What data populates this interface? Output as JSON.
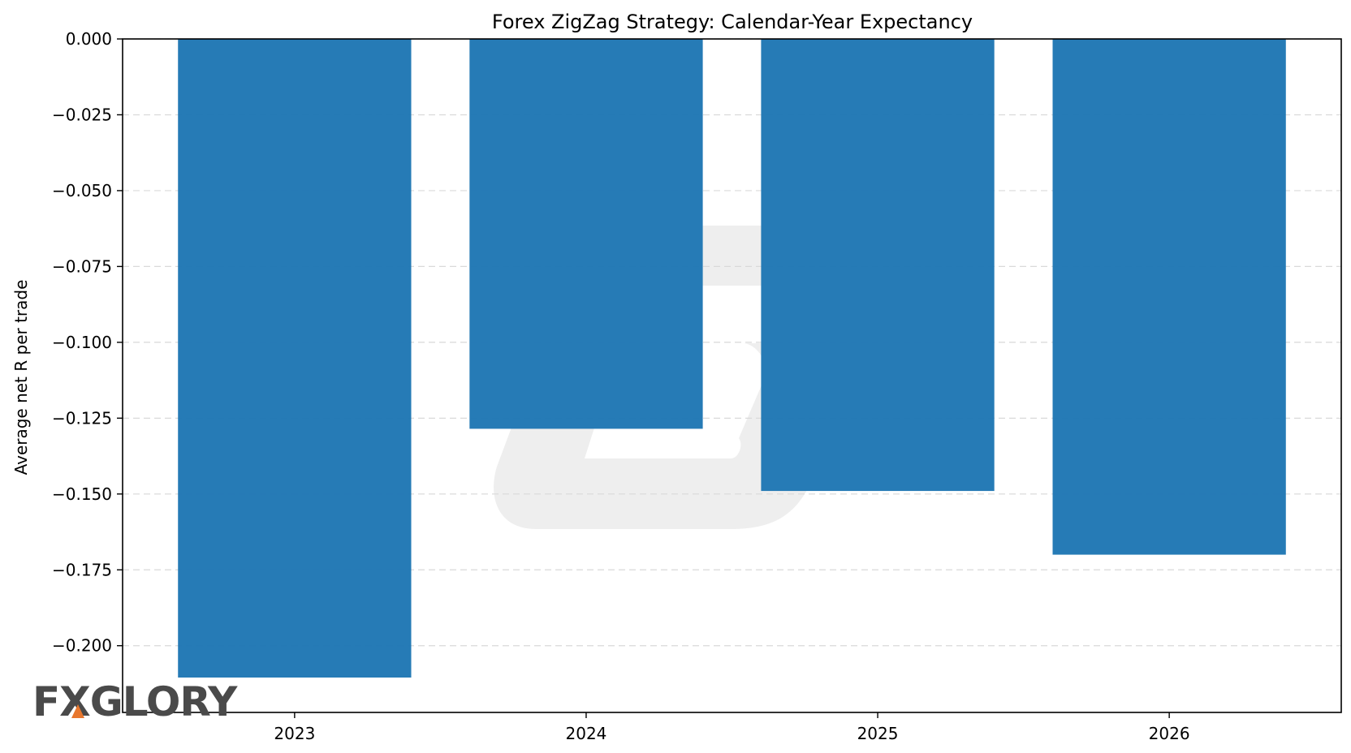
{
  "chart_data": {
    "type": "bar",
    "title": "Forex ZigZag Strategy: Calendar-Year Expectancy",
    "xlabel": "",
    "ylabel": "Average net R per trade",
    "categories": [
      "2023",
      "2024",
      "2025",
      "2026"
    ],
    "values": [
      -0.2105,
      -0.1285,
      -0.149,
      -0.17
    ],
    "ylim": [
      -0.222,
      0.0
    ],
    "yticks": [
      0.0,
      -0.025,
      -0.05,
      -0.075,
      -0.1,
      -0.125,
      -0.15,
      -0.175,
      -0.2
    ],
    "ytick_labels": [
      "0.000",
      "−0.025",
      "−0.050",
      "−0.075",
      "−0.100",
      "−0.125",
      "−0.150",
      "−0.175",
      "−0.200"
    ],
    "grid": true,
    "bar_color": "#1f77b4"
  },
  "watermark": {
    "logo_text": "FXGLORY",
    "logo_color": "#4a4a4a",
    "accent_color": "#e8772e",
    "watermark_color": "#7a7a7a"
  }
}
